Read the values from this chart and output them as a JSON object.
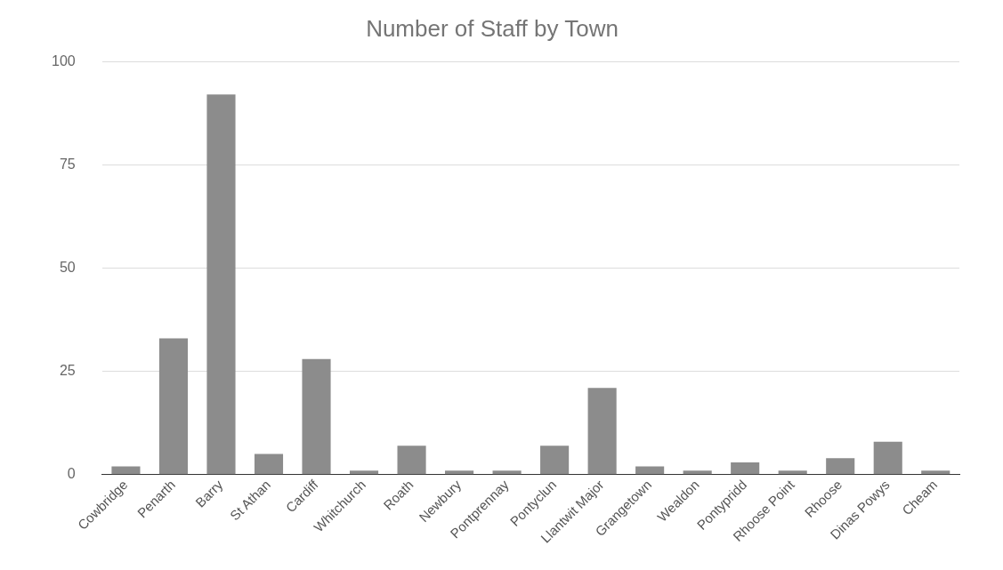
{
  "chart_data": {
    "type": "bar",
    "title": "Number of Staff by Town",
    "categories": [
      "Cowbridge",
      "Penarth",
      "Barry",
      "St Athan",
      "Cardiff",
      "Whitchurch",
      "Roath",
      "Newbury",
      "Pontprennay",
      "Pontyclun",
      "Llantwit Major",
      "Grangetown",
      "Wealdon",
      "Pontypridd",
      "Rhoose Point",
      "Rhoose",
      "Dinas Powys",
      "Cheam"
    ],
    "values": [
      2,
      33,
      92,
      5,
      28,
      1,
      7,
      1,
      1,
      7,
      21,
      2,
      1,
      3,
      1,
      4,
      8,
      1
    ],
    "color": "#8c8c8c",
    "ylim": [
      0,
      100
    ],
    "yticks": [
      0,
      25,
      50,
      75,
      100
    ],
    "grid": "y",
    "legend": false
  }
}
